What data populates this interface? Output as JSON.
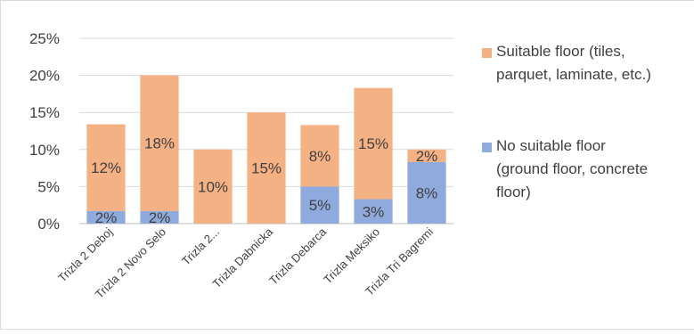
{
  "chart_data": {
    "type": "bar",
    "stacked": true,
    "categories": [
      "Trizla 2 Deboj",
      "Trizla 2 Novo Selo",
      "Trizla 2...",
      "Trizla Dabnicka",
      "Trizla Debarca",
      "Trizla Meksiko",
      "Trizla Tri Bagremi"
    ],
    "series": [
      {
        "name": "No suitable floor (ground floor, concrete floor)",
        "legend_lines": [
          "No suitable floor",
          "(ground floor, concrete",
          "floor)"
        ],
        "color": "#8faadc",
        "values": [
          1.7,
          1.7,
          0,
          0,
          5.0,
          3.3,
          8.3
        ],
        "labels": [
          "2%",
          "2%",
          "",
          "",
          "5%",
          "3%",
          "8%"
        ]
      },
      {
        "name": "Suitable floor (tiles, parquet, laminate, etc.)",
        "legend_lines": [
          "Suitable floor (tiles,",
          "parquet, laminate, etc.)"
        ],
        "color": "#f4b183",
        "values": [
          11.7,
          18.3,
          10.0,
          15.0,
          8.3,
          15.0,
          1.7
        ],
        "labels": [
          "12%",
          "18%",
          "10%",
          "15%",
          "8%",
          "15%",
          "2%"
        ]
      }
    ],
    "y_ticks": [
      "0%",
      "5%",
      "10%",
      "15%",
      "20%",
      "25%"
    ],
    "ylim": [
      0,
      25
    ],
    "grid": true,
    "legend_position": "right"
  }
}
